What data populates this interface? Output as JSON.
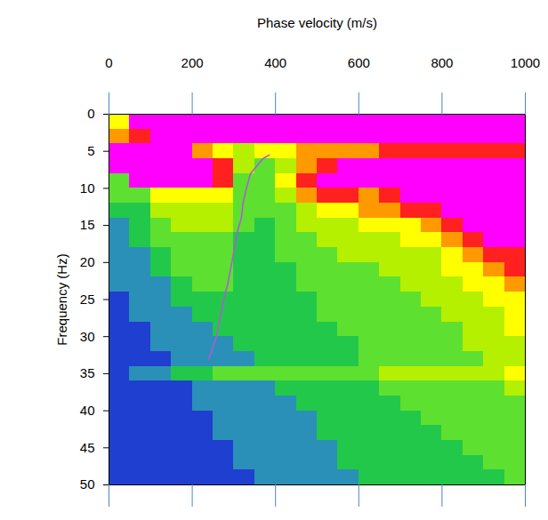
{
  "chart_data": {
    "type": "heatmap",
    "x_label": "Phase velocity (m/s)",
    "y_label": "Frequency (Hz)",
    "xlim": [
      0,
      1000
    ],
    "xticks": [
      0,
      200,
      400,
      600,
      800,
      1000
    ],
    "ylim": [
      0,
      50
    ],
    "yticks": [
      0,
      5,
      10,
      15,
      20,
      25,
      30,
      35,
      40,
      45,
      50
    ],
    "cells": {
      "x_edges": [
        0,
        50,
        100,
        150,
        200,
        250,
        300,
        350,
        400,
        450,
        500,
        550,
        600,
        650,
        700,
        750,
        800,
        850,
        900,
        950,
        1000
      ],
      "y_edges": [
        0,
        2,
        4,
        6,
        8,
        10,
        12,
        14,
        16,
        18,
        20,
        22,
        24,
        26,
        28,
        30,
        32,
        34,
        36,
        38,
        40,
        42,
        44,
        46,
        48,
        50
      ],
      "levels": [
        0,
        1,
        2,
        3,
        4,
        5,
        6,
        7,
        8
      ],
      "level_colors": [
        "#1f3fd0",
        "#2a90b8",
        "#22c84a",
        "#5ee030",
        "#b4f000",
        "#ffff00",
        "#ff9900",
        "#ff2020",
        "#ff00ff"
      ],
      "z": [
        [
          5,
          8,
          8,
          8,
          8,
          8,
          8,
          8,
          8,
          8,
          8,
          8,
          8,
          8,
          8,
          8,
          8,
          8,
          8,
          8
        ],
        [
          6,
          7,
          8,
          8,
          8,
          8,
          8,
          8,
          8,
          8,
          8,
          8,
          8,
          8,
          8,
          8,
          8,
          8,
          8,
          8
        ],
        [
          8,
          8,
          8,
          8,
          6,
          5,
          4,
          5,
          5,
          6,
          6,
          6,
          6,
          7,
          7,
          7,
          7,
          7,
          7,
          7
        ],
        [
          8,
          8,
          8,
          8,
          8,
          7,
          4,
          3,
          4,
          6,
          7,
          8,
          8,
          8,
          8,
          8,
          8,
          8,
          8,
          8
        ],
        [
          3,
          8,
          8,
          8,
          8,
          7,
          3,
          3,
          5,
          7,
          8,
          8,
          8,
          8,
          8,
          8,
          8,
          8,
          8,
          8
        ],
        [
          3,
          3,
          5,
          5,
          5,
          5,
          3,
          3,
          4,
          6,
          7,
          7,
          6,
          7,
          8,
          8,
          8,
          8,
          8,
          8
        ],
        [
          2,
          2,
          4,
          4,
          4,
          4,
          3,
          3,
          3,
          4,
          5,
          5,
          6,
          6,
          7,
          7,
          8,
          8,
          8,
          8
        ],
        [
          1,
          2,
          3,
          4,
          4,
          4,
          3,
          2,
          3,
          4,
          4,
          4,
          5,
          5,
          5,
          6,
          7,
          8,
          8,
          8
        ],
        [
          1,
          2,
          3,
          3,
          3,
          3,
          2,
          2,
          3,
          3,
          4,
          4,
          4,
          4,
          5,
          5,
          6,
          7,
          8,
          8
        ],
        [
          1,
          1,
          2,
          3,
          3,
          3,
          2,
          2,
          3,
          3,
          3,
          4,
          4,
          4,
          4,
          4,
          5,
          6,
          7,
          7
        ],
        [
          1,
          1,
          2,
          3,
          3,
          3,
          2,
          2,
          2,
          3,
          3,
          3,
          3,
          4,
          4,
          4,
          5,
          5,
          6,
          7
        ],
        [
          1,
          1,
          1,
          2,
          3,
          3,
          2,
          2,
          2,
          3,
          3,
          3,
          3,
          3,
          4,
          4,
          4,
          5,
          5,
          6
        ],
        [
          0,
          1,
          1,
          2,
          2,
          2,
          2,
          2,
          2,
          2,
          3,
          3,
          3,
          3,
          3,
          4,
          4,
          4,
          5,
          5
        ],
        [
          0,
          1,
          1,
          1,
          2,
          2,
          2,
          2,
          2,
          2,
          3,
          3,
          3,
          3,
          3,
          3,
          4,
          4,
          4,
          5
        ],
        [
          0,
          0,
          1,
          1,
          1,
          2,
          2,
          2,
          2,
          2,
          2,
          3,
          3,
          3,
          3,
          3,
          3,
          4,
          4,
          5
        ],
        [
          0,
          0,
          1,
          1,
          1,
          1,
          2,
          2,
          2,
          2,
          2,
          2,
          3,
          3,
          3,
          3,
          3,
          4,
          4,
          4
        ],
        [
          0,
          0,
          0,
          1,
          1,
          1,
          1,
          2,
          2,
          2,
          2,
          2,
          3,
          3,
          3,
          3,
          3,
          3,
          4,
          4
        ],
        [
          0,
          1,
          1,
          2,
          2,
          3,
          3,
          3,
          3,
          3,
          3,
          3,
          3,
          4,
          4,
          4,
          4,
          4,
          4,
          5
        ],
        [
          0,
          0,
          0,
          0,
          1,
          1,
          1,
          1,
          2,
          2,
          2,
          2,
          2,
          3,
          3,
          3,
          3,
          3,
          3,
          4
        ],
        [
          0,
          0,
          0,
          0,
          1,
          1,
          1,
          1,
          1,
          2,
          2,
          2,
          2,
          2,
          3,
          3,
          3,
          3,
          3,
          3
        ],
        [
          0,
          0,
          0,
          0,
          0,
          1,
          1,
          1,
          1,
          1,
          2,
          2,
          2,
          2,
          2,
          3,
          3,
          3,
          3,
          3
        ],
        [
          0,
          0,
          0,
          0,
          0,
          1,
          1,
          1,
          1,
          1,
          2,
          2,
          2,
          2,
          2,
          2,
          3,
          3,
          3,
          3
        ],
        [
          0,
          0,
          0,
          0,
          0,
          0,
          1,
          1,
          1,
          1,
          1,
          2,
          2,
          2,
          2,
          2,
          2,
          3,
          3,
          3
        ],
        [
          0,
          0,
          0,
          0,
          0,
          0,
          1,
          1,
          1,
          1,
          1,
          2,
          2,
          2,
          2,
          2,
          2,
          2,
          3,
          3
        ],
        [
          0,
          0,
          0,
          0,
          0,
          0,
          0,
          1,
          1,
          1,
          1,
          1,
          2,
          2,
          2,
          2,
          2,
          2,
          2,
          3
        ]
      ]
    },
    "curve": {
      "type": "line",
      "color": "#b05ad8",
      "velocity": [
        385,
        370,
        340,
        330,
        322,
        318,
        310,
        295,
        285,
        275,
        265,
        258,
        240
      ],
      "frequency": [
        5.5,
        6,
        8,
        10,
        12,
        14,
        15.5,
        20,
        23,
        25,
        28,
        30,
        33
      ]
    }
  }
}
